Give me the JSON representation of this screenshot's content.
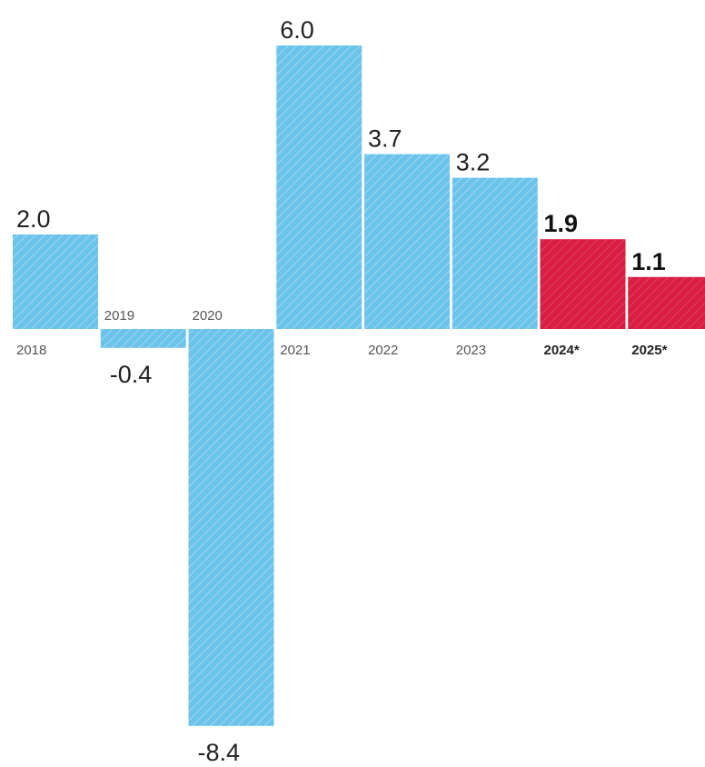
{
  "chart_data": {
    "type": "bar",
    "categories": [
      "2018",
      "2019",
      "2020",
      "2021",
      "2022",
      "2023",
      "2024*",
      "2025*"
    ],
    "values": [
      2.0,
      -0.4,
      -8.4,
      6.0,
      3.7,
      3.2,
      1.9,
      1.1
    ],
    "value_labels": [
      "2.0",
      "-0.4",
      "-8.4",
      "6.0",
      "3.7",
      "3.2",
      "1.9",
      "1.1"
    ],
    "forecast": [
      false,
      false,
      false,
      false,
      false,
      false,
      true,
      true
    ],
    "colors": {
      "actual": "#6cc3ea",
      "actual_stripe": "#8fd2f1",
      "forecast": "#d91e41",
      "forecast_stripe": "#e8445f"
    },
    "ylim": [
      -8.4,
      6.0
    ],
    "grid": false,
    "legend": "none"
  }
}
